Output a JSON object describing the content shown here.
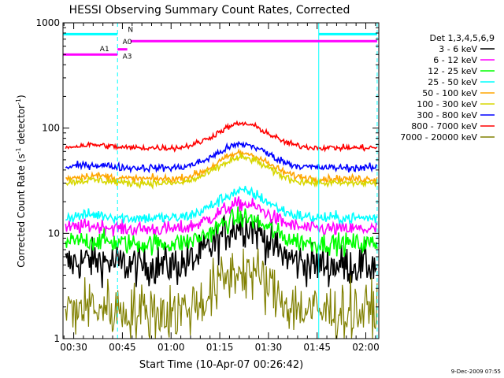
{
  "chart_data": {
    "type": "line",
    "title": "HESSI Observing Summary Count Rates, Corrected",
    "xlabel": "Start Time (10-Apr-07 00:26:42)",
    "ylabel_main": "Corrected Count Rate (s",
    "ylabel_sup1": "-1",
    "ylabel_mid": " detector",
    "ylabel_sup2": "-1",
    "ylabel_end": ")",
    "yscale": "log",
    "ylim": [
      1,
      1000
    ],
    "xlim_minutes": [
      26.7,
      124
    ],
    "xticks": [
      {
        "min": 30,
        "label": "00:30"
      },
      {
        "min": 45,
        "label": "00:45"
      },
      {
        "min": 60,
        "label": "01:00"
      },
      {
        "min": 75,
        "label": "01:15"
      },
      {
        "min": 90,
        "label": "01:30"
      },
      {
        "min": 105,
        "label": "01:45"
      },
      {
        "min": 120,
        "label": "02:00"
      }
    ],
    "yticks": [
      {
        "value": 1,
        "label": "1"
      },
      {
        "value": 10,
        "label": "10"
      },
      {
        "value": 100,
        "label": "100"
      },
      {
        "value": 1000,
        "label": "1000"
      }
    ],
    "legend_title": "Det 1,3,4,5,6,9",
    "legend_position": "right",
    "series": [
      {
        "name": "3 - 6 keV",
        "color": "#000000",
        "base": 5.0,
        "peak": 12.0,
        "noise": 0.14
      },
      {
        "name": "6 - 12 keV",
        "color": "#ff00ff",
        "base": 11.0,
        "peak": 19.0,
        "noise": 0.05
      },
      {
        "name": "12 - 25 keV",
        "color": "#00ff00",
        "base": 8.0,
        "peak": 14.0,
        "noise": 0.07
      },
      {
        "name": "25 - 50 keV",
        "color": "#00ffff",
        "base": 14.0,
        "peak": 25.0,
        "noise": 0.04
      },
      {
        "name": "50 - 100 keV",
        "color": "#ffa500",
        "base": 33.0,
        "peak": 58.0,
        "noise": 0.025
      },
      {
        "name": "100 - 300 keV",
        "color": "#d7d700",
        "base": 30.0,
        "peak": 52.0,
        "noise": 0.025
      },
      {
        "name": "300 - 800 keV",
        "color": "#0000ff",
        "base": 42.0,
        "peak": 70.0,
        "noise": 0.025
      },
      {
        "name": "800 - 7000 keV",
        "color": "#ff0000",
        "base": 65.0,
        "peak": 110.0,
        "noise": 0.02
      },
      {
        "name": "7000 - 20000 keV",
        "color": "#808000",
        "base": 1.8,
        "peak": 4.5,
        "noise": 0.2
      }
    ],
    "flags": [
      {
        "label": "N",
        "color": "#00ffff",
        "segments": [
          [
            26.7,
            43.5
          ],
          [
            105.5,
            123.5
          ]
        ],
        "value": 780
      },
      {
        "label": "A0",
        "color": "#ff00ff",
        "segments": [
          [
            47.5,
            123.5
          ]
        ],
        "value": 670
      },
      {
        "label": "A1",
        "color": "#ff00ff",
        "segments": [
          [
            26.7,
            43.5
          ]
        ],
        "value": 500
      },
      {
        "label": "A3",
        "color": "#ff00ff",
        "segments": [
          [
            43.5,
            46.5
          ]
        ],
        "value": 560
      }
    ],
    "vlines": [
      {
        "min": 26.7,
        "style": "solid"
      },
      {
        "min": 43.5,
        "style": "dashed"
      },
      {
        "min": 105.5,
        "style": "solid"
      },
      {
        "min": 123.5,
        "style": "dashed"
      }
    ]
  },
  "footer": {
    "timestamp": "9-Dec-2009 07:55"
  }
}
